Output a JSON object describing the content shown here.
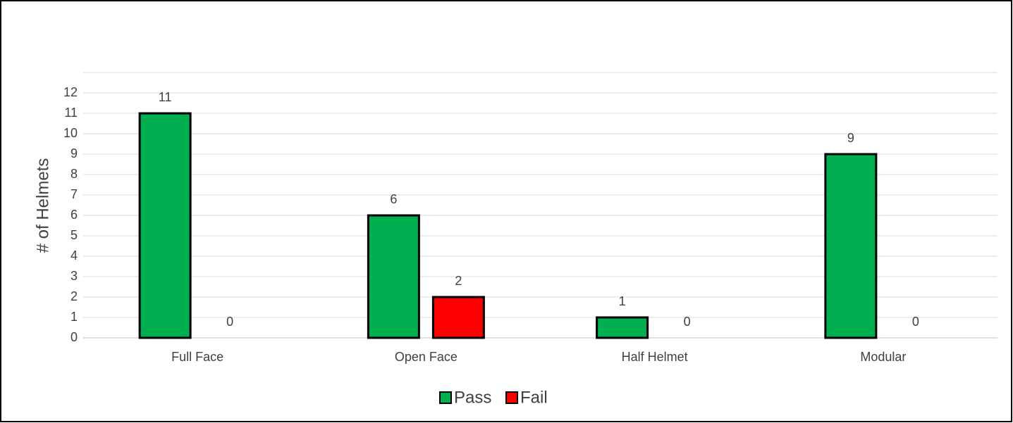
{
  "chart_data": {
    "type": "bar",
    "y_label": "# of Helmets",
    "categories": [
      "Full Face",
      "Open Face",
      "Half Helmet",
      "Modular"
    ],
    "series": [
      {
        "name": "Pass",
        "color": "#00b050",
        "values": [
          11,
          6,
          1,
          9
        ]
      },
      {
        "name": "Fail",
        "color": "#ff0000",
        "values": [
          0,
          2,
          0,
          0
        ]
      }
    ],
    "ylim": [
      0,
      13
    ],
    "yticks": [
      0,
      1,
      2,
      3,
      4,
      5,
      6,
      7,
      8,
      9,
      10,
      11,
      12
    ],
    "grid": true,
    "legend": "bottom"
  }
}
